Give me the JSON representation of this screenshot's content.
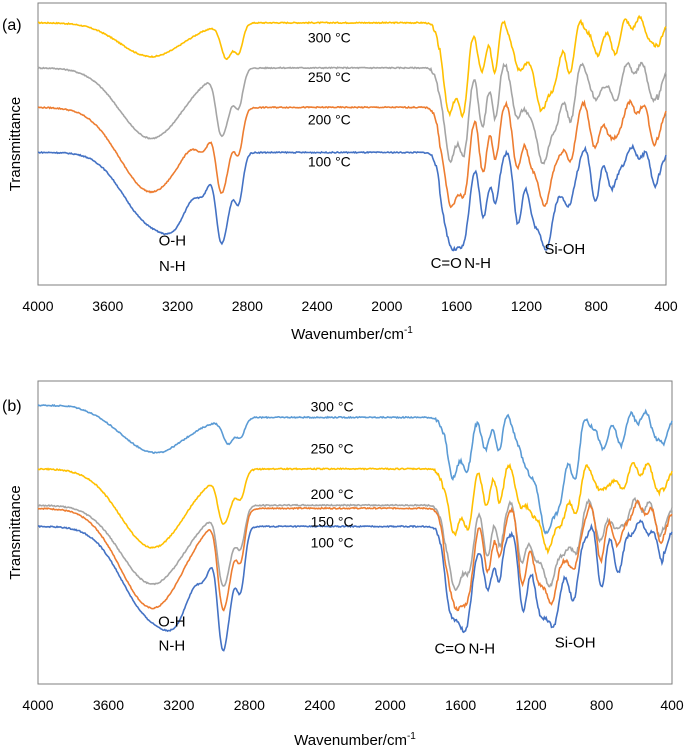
{
  "chart_data": [
    {
      "type": "line",
      "panel_label": "(a)",
      "xlabel": "Wavenumber/cm-1",
      "ylabel": "Transmittance",
      "xlim": [
        4000,
        400
      ],
      "x_reversed": true,
      "x_ticks": [
        "4000",
        "3600",
        "3200",
        "2800",
        "2400",
        "2000",
        "1600",
        "1200",
        "800",
        "400"
      ],
      "grid": false,
      "series": [
        {
          "name": "300 °C",
          "color": "#FFC000",
          "base": 0.93,
          "dips": [
            [
              3350,
              0.12,
              180
            ],
            [
              2920,
              0.12,
              30
            ],
            [
              2850,
              0.1,
              25
            ],
            [
              1640,
              0.3,
              40
            ],
            [
              1560,
              0.26,
              30
            ],
            [
              1450,
              0.17,
              25
            ],
            [
              1380,
              0.15,
              20
            ],
            [
              1250,
              0.15,
              25
            ],
            [
              1100,
              0.3,
              70
            ],
            [
              950,
              0.13,
              25
            ],
            [
              800,
              0.12,
              25
            ],
            [
              700,
              0.1,
              30
            ],
            [
              460,
              0.1,
              30
            ]
          ]
        },
        {
          "name": "250 °C",
          "color": "#A5A5A5",
          "base": 0.77,
          "dips": [
            [
              3350,
              0.25,
              180
            ],
            [
              2960,
              0.14,
              25
            ],
            [
              2920,
              0.15,
              30
            ],
            [
              2850,
              0.13,
              25
            ],
            [
              1640,
              0.3,
              40
            ],
            [
              1560,
              0.26,
              30
            ],
            [
              1450,
              0.19,
              25
            ],
            [
              1380,
              0.16,
              20
            ],
            [
              1250,
              0.16,
              25
            ],
            [
              1100,
              0.32,
              70
            ],
            [
              950,
              0.15,
              25
            ],
            [
              800,
              0.13,
              25
            ],
            [
              700,
              0.12,
              30
            ],
            [
              460,
              0.12,
              30
            ]
          ]
        },
        {
          "name": "200 °C",
          "color": "#ED7D31",
          "base": 0.63,
          "dips": [
            [
              3350,
              0.3,
              180
            ],
            [
              3050,
              0.08,
              40
            ],
            [
              2960,
              0.18,
              25
            ],
            [
              2920,
              0.18,
              30
            ],
            [
              2850,
              0.15,
              25
            ],
            [
              1640,
              0.33,
              40
            ],
            [
              1560,
              0.28,
              30
            ],
            [
              1450,
              0.21,
              25
            ],
            [
              1380,
              0.18,
              20
            ],
            [
              1250,
              0.18,
              25
            ],
            [
              1100,
              0.33,
              70
            ],
            [
              950,
              0.17,
              25
            ],
            [
              800,
              0.15,
              25
            ],
            [
              700,
              0.13,
              30
            ],
            [
              460,
              0.12,
              30
            ]
          ]
        },
        {
          "name": "100 °C",
          "color": "#4472C4",
          "base": 0.47,
          "dips": [
            [
              3350,
              0.25,
              160
            ],
            [
              3200,
              0.1,
              80
            ],
            [
              3050,
              0.09,
              40
            ],
            [
              2960,
              0.2,
              25
            ],
            [
              2920,
              0.2,
              30
            ],
            [
              2850,
              0.17,
              25
            ],
            [
              1640,
              0.33,
              40
            ],
            [
              1560,
              0.3,
              30
            ],
            [
              1450,
              0.22,
              25
            ],
            [
              1380,
              0.19,
              20
            ],
            [
              1250,
              0.2,
              25
            ],
            [
              1100,
              0.33,
              70
            ],
            [
              950,
              0.17,
              25
            ],
            [
              800,
              0.16,
              25
            ],
            [
              700,
              0.13,
              30
            ],
            [
              460,
              0.1,
              30
            ]
          ]
        }
      ],
      "annotations": [
        {
          "text": "O-H",
          "x": 3230,
          "y": 0.14
        },
        {
          "text": "N-H",
          "x": 3230,
          "y": 0.05
        },
        {
          "text": "C=O",
          "x": 1660,
          "y": 0.06
        },
        {
          "text": "N-H",
          "x": 1480,
          "y": 0.06
        },
        {
          "text": "Si-OH",
          "x": 980,
          "y": 0.11
        }
      ],
      "series_labels": [
        {
          "text": "300 °C",
          "x": 2330,
          "y": 0.86
        },
        {
          "text": "250 °C",
          "x": 2330,
          "y": 0.72
        },
        {
          "text": "200 °C",
          "x": 2330,
          "y": 0.57
        },
        {
          "text": "100 °C",
          "x": 2330,
          "y": 0.42
        }
      ]
    },
    {
      "type": "line",
      "panel_label": "(b)",
      "xlabel": "Wavenumber/cm-1",
      "ylabel": "Transmittance",
      "xlim": [
        4000,
        400
      ],
      "x_reversed": true,
      "x_ticks": [
        "4000",
        "3600",
        "3200",
        "2800",
        "2400",
        "2000",
        "1600",
        "1200",
        "800",
        "400"
      ],
      "grid": false,
      "series": [
        {
          "name": "300 °C",
          "color": "#5B9BD5",
          "base": 0.88,
          "slope": 0.08,
          "dips": [
            [
              3350,
              0.12,
              180
            ],
            [
              2920,
              0.08,
              30
            ],
            [
              2850,
              0.06,
              25
            ],
            [
              1640,
              0.18,
              40
            ],
            [
              1560,
              0.13,
              30
            ],
            [
              1450,
              0.1,
              25
            ],
            [
              1380,
              0.09,
              20
            ],
            [
              1250,
              0.09,
              25
            ],
            [
              1100,
              0.37,
              80
            ],
            [
              950,
              0.12,
              25
            ],
            [
              800,
              0.11,
              25
            ],
            [
              700,
              0.08,
              30
            ],
            [
              460,
              0.1,
              30
            ]
          ]
        },
        {
          "name": "250 °C",
          "color": "#FFC000",
          "base": 0.71,
          "dips": [
            [
              3350,
              0.26,
              180
            ],
            [
              2960,
              0.1,
              25
            ],
            [
              2920,
              0.11,
              30
            ],
            [
              2850,
              0.09,
              25
            ],
            [
              1640,
              0.19,
              40
            ],
            [
              1560,
              0.16,
              30
            ],
            [
              1450,
              0.1,
              25
            ],
            [
              1380,
              0.09,
              20
            ],
            [
              1250,
              0.1,
              25
            ],
            [
              1100,
              0.25,
              80
            ],
            [
              950,
              0.1,
              25
            ],
            [
              800,
              0.09,
              25
            ],
            [
              700,
              0.07,
              30
            ],
            [
              460,
              0.08,
              30
            ]
          ]
        },
        {
          "name": "200 °C",
          "color": "#A5A5A5",
          "base": 0.59,
          "dips": [
            [
              3350,
              0.26,
              180
            ],
            [
              2960,
              0.16,
              25
            ],
            [
              2920,
              0.16,
              30
            ],
            [
              2850,
              0.13,
              25
            ],
            [
              1640,
              0.26,
              40
            ],
            [
              1560,
              0.2,
              30
            ],
            [
              1450,
              0.15,
              25
            ],
            [
              1380,
              0.13,
              20
            ],
            [
              1250,
              0.14,
              25
            ],
            [
              1100,
              0.25,
              80
            ],
            [
              950,
              0.13,
              25
            ],
            [
              800,
              0.12,
              25
            ],
            [
              700,
              0.09,
              30
            ],
            [
              460,
              0.09,
              30
            ]
          ]
        },
        {
          "name": "150 °C",
          "color": "#ED7D31",
          "base": 0.58,
          "dips": [
            [
              3350,
              0.33,
              180
            ],
            [
              2960,
              0.2,
              25
            ],
            [
              2920,
              0.2,
              30
            ],
            [
              2850,
              0.16,
              25
            ],
            [
              1640,
              0.32,
              40
            ],
            [
              1560,
              0.28,
              30
            ],
            [
              1450,
              0.2,
              25
            ],
            [
              1380,
              0.17,
              20
            ],
            [
              1250,
              0.18,
              25
            ],
            [
              1100,
              0.3,
              80
            ],
            [
              950,
              0.16,
              25
            ],
            [
              800,
              0.16,
              25
            ],
            [
              700,
              0.12,
              30
            ],
            [
              460,
              0.1,
              30
            ]
          ]
        },
        {
          "name": "100 °C",
          "color": "#4472C4",
          "base": 0.52,
          "dips": [
            [
              3350,
              0.3,
              170
            ],
            [
              3200,
              0.11,
              80
            ],
            [
              3050,
              0.09,
              40
            ],
            [
              2960,
              0.26,
              25
            ],
            [
              2920,
              0.24,
              30
            ],
            [
              2850,
              0.2,
              25
            ],
            [
              1640,
              0.32,
              40
            ],
            [
              1560,
              0.29,
              30
            ],
            [
              1450,
              0.22,
              25
            ],
            [
              1380,
              0.19,
              20
            ],
            [
              1250,
              0.2,
              25
            ],
            [
              1100,
              0.33,
              80
            ],
            [
              950,
              0.18,
              25
            ],
            [
              800,
              0.18,
              25
            ],
            [
              700,
              0.14,
              30
            ],
            [
              460,
              0.1,
              30
            ]
          ]
        }
      ],
      "annotations": [
        {
          "text": "O-H",
          "x": 3240,
          "y": 0.19
        },
        {
          "text": "N-H",
          "x": 3240,
          "y": 0.11
        },
        {
          "text": "C=O",
          "x": 1660,
          "y": 0.1
        },
        {
          "text": "N-H",
          "x": 1480,
          "y": 0.1
        },
        {
          "text": "Si-OH",
          "x": 950,
          "y": 0.12
        }
      ],
      "series_labels": [
        {
          "text": "300 °C",
          "x": 2330,
          "y": 0.9
        },
        {
          "text": "250 °C",
          "x": 2330,
          "y": 0.76
        },
        {
          "text": "200 °C",
          "x": 2330,
          "y": 0.61
        },
        {
          "text": "150 °C",
          "x": 2330,
          "y": 0.52
        },
        {
          "text": "100 °C",
          "x": 2330,
          "y": 0.45
        }
      ]
    }
  ]
}
